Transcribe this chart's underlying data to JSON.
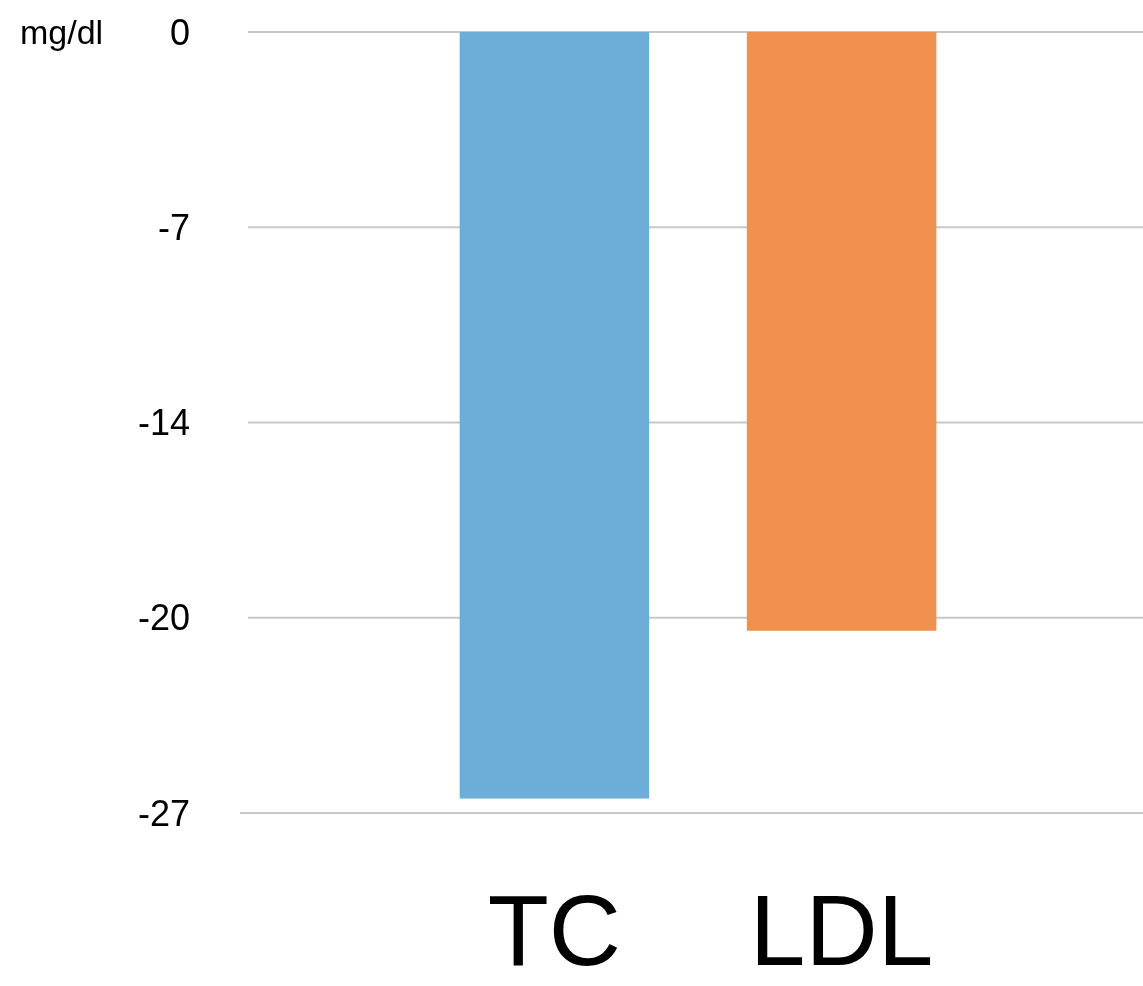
{
  "chart_data": {
    "type": "bar",
    "ylabel": "mg/dl",
    "categories": [
      "TC",
      "LDL"
    ],
    "values": [
      -26.5,
      -20.7
    ],
    "colors": [
      "#6daed9",
      "#f19150"
    ],
    "ylim": [
      -27,
      0
    ],
    "yticks": [
      0,
      {
        "value": -6.75,
        "label": "-7"
      },
      {
        "value": -13.5,
        "label": "-14"
      },
      {
        "value": -20.25,
        "label": "-20"
      },
      -27
    ],
    "grid": "y"
  }
}
